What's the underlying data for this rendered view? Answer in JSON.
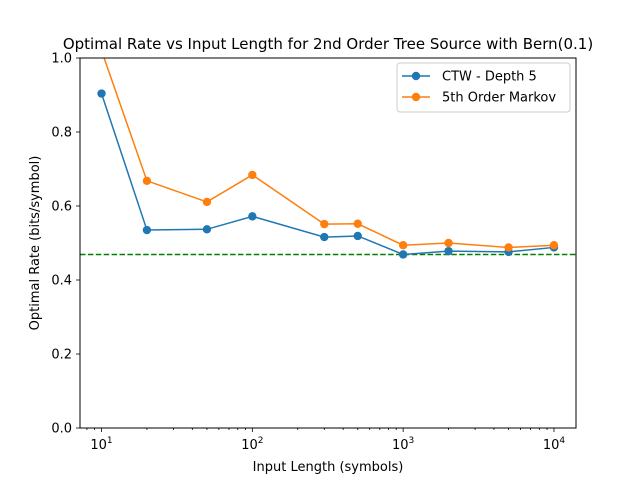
{
  "chart_data": {
    "type": "line",
    "title": "Optimal Rate vs Input Length for 2nd Order Tree Source with Bern(0.1)",
    "xlabel": "Input Length (symbols)",
    "ylabel": "Optimal Rate (bits/symbol)",
    "xscale": "log",
    "xlim": [
      7.2,
      14000
    ],
    "ylim": [
      0,
      1
    ],
    "x_ticks": [
      {
        "value": 10,
        "base": "10",
        "exp": "1"
      },
      {
        "value": 100,
        "base": "10",
        "exp": "2"
      },
      {
        "value": 1000,
        "base": "10",
        "exp": "3"
      },
      {
        "value": 10000,
        "base": "10",
        "exp": "4"
      }
    ],
    "y_ticks": [
      {
        "value": 0,
        "label": "0.0"
      },
      {
        "value": 0.2,
        "label": "0.2"
      },
      {
        "value": 0.4,
        "label": "0.4"
      },
      {
        "value": 0.6,
        "label": "0.6"
      },
      {
        "value": 0.8,
        "label": "0.8"
      },
      {
        "value": 1.0,
        "label": "1.0"
      }
    ],
    "grid": false,
    "legend_position": "top-right",
    "x": [
      10,
      20,
      50,
      100,
      300,
      500,
      1000,
      2000,
      5000,
      10000
    ],
    "series": [
      {
        "name": "CTW - Depth 5",
        "color": "#1f77b4",
        "marker": "circle",
        "values": [
          0.904,
          0.535,
          0.537,
          0.572,
          0.516,
          0.519,
          0.469,
          0.478,
          0.476,
          0.488
        ]
      },
      {
        "name": "5th Order Markov",
        "color": "#ff7f0e",
        "marker": "circle",
        "values": [
          1.02,
          0.668,
          0.611,
          0.684,
          0.551,
          0.552,
          0.494,
          0.5,
          0.488,
          0.494
        ]
      }
    ],
    "reference_line": {
      "y": 0.469,
      "color": "#008000",
      "style": "dashed"
    }
  }
}
